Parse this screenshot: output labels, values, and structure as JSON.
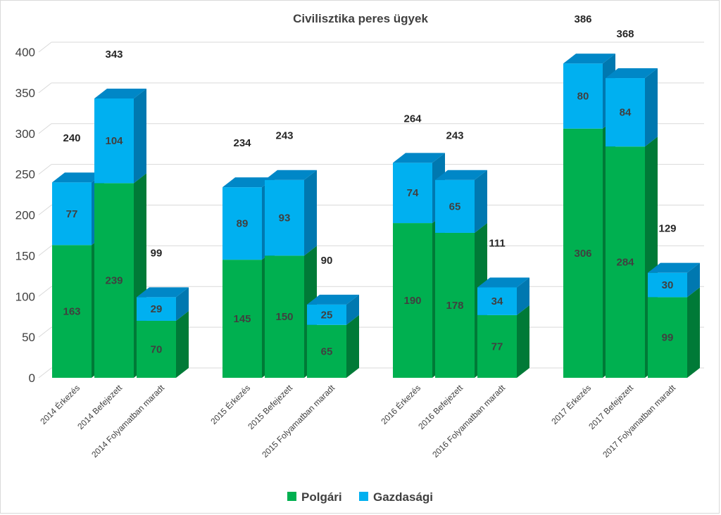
{
  "chart_data": {
    "type": "bar",
    "stacked": true,
    "style": "3d",
    "title": "Civilisztika peres ügyek",
    "xlabel": "",
    "ylabel": "",
    "ylim": [
      0,
      400
    ],
    "yticks": [
      "0",
      "50",
      "100",
      "150",
      "200",
      "250",
      "300",
      "350",
      "400"
    ],
    "grid": true,
    "legend_position": "bottom",
    "categories": [
      "2014 Érkezés",
      "2014 Befejezett",
      "2014  Folyamatban maradt",
      "2015 Érkezés",
      "2015 Befejezett",
      "2015  Folyamatban maradt",
      "2016 Érkezés",
      "2016 Befejezett",
      "2016  Folyamatban maradt",
      "2017 Érkezés",
      "2017 Befejezett",
      "2017  Folyamatban maradt"
    ],
    "groups": [
      [
        0,
        1,
        2
      ],
      [
        3,
        4,
        5
      ],
      [
        6,
        7,
        8
      ],
      [
        9,
        10,
        11
      ]
    ],
    "series": [
      {
        "name": "Polgári",
        "color": "#00b050",
        "side_color": "#007a37",
        "top_color": "#33c070",
        "values": [
          163,
          239,
          70,
          145,
          150,
          65,
          190,
          178,
          77,
          306,
          284,
          99
        ],
        "labels": [
          "163",
          "239",
          "70",
          "145",
          "150",
          "65",
          "190",
          "178",
          "77",
          "306",
          "284",
          "99"
        ]
      },
      {
        "name": "Gazdasági",
        "color": "#00b0f0",
        "side_color": "#0078b0",
        "top_color": "#0087c7",
        "values": [
          77,
          104,
          29,
          89,
          93,
          25,
          74,
          65,
          34,
          80,
          84,
          30
        ],
        "labels": [
          "77",
          "104",
          "29",
          "89",
          "93",
          "25",
          "74",
          "65",
          "34",
          "80",
          "84",
          "30"
        ]
      }
    ],
    "totals": [
      240,
      343,
      99,
      234,
      243,
      90,
      264,
      243,
      111,
      386,
      368,
      129
    ],
    "total_labels": [
      "240",
      "343",
      "99",
      "234",
      "243",
      "90",
      "264",
      "243",
      "111",
      "386",
      "368",
      "129"
    ]
  }
}
